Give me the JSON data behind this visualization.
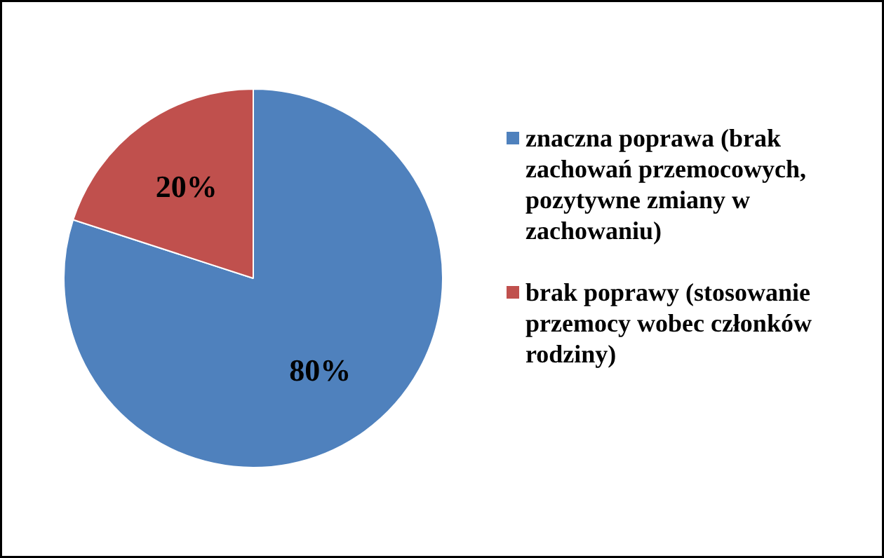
{
  "chart_data": {
    "type": "pie",
    "categories": [
      "znaczna poprawa (brak zachowań przemocowych, pozytywne zmiany w zachowaniu)",
      "brak poprawy (stosowanie przemocy wobec członków rodziny)"
    ],
    "values": [
      80,
      20
    ],
    "colors": [
      "#4f81bd",
      "#c0504d"
    ],
    "value_labels": [
      "80%",
      "20%"
    ],
    "legend": "right"
  }
}
